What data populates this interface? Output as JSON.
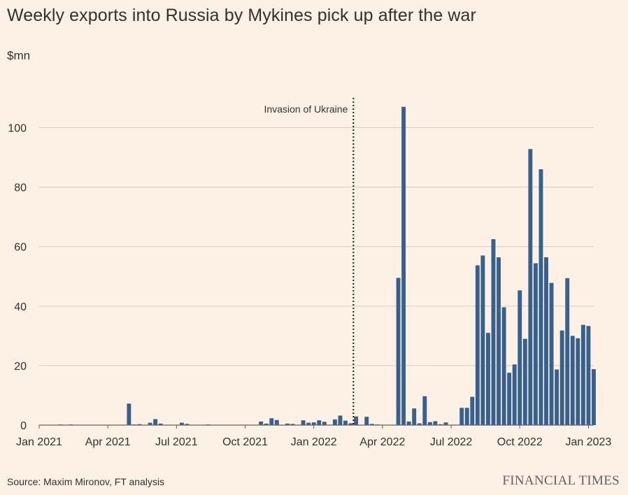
{
  "header": {
    "title": "Weekly exports into Russia by Mykines pick up after the war",
    "unit": "$mn"
  },
  "footer": {
    "source": "Source: Maxim Mironov, FT analysis",
    "brand": "FINANCIAL TIMES"
  },
  "colors": {
    "background": "#fdf1e6",
    "bar": "#36618f",
    "grid": "#d9cbbf",
    "text": "#33302e"
  },
  "chart_data": {
    "type": "bar",
    "x_start": "Jan 2021",
    "period": "weekly",
    "ylabel": "$mn",
    "ylim": [
      0,
      110
    ],
    "yticks": [
      0,
      20,
      40,
      60,
      80,
      100
    ],
    "xticks": [
      {
        "label": "Jan 2021",
        "week": 0
      },
      {
        "label": "Apr 2021",
        "week": 13
      },
      {
        "label": "Jul 2021",
        "week": 26
      },
      {
        "label": "Oct 2021",
        "week": 39
      },
      {
        "label": "Jan 2022",
        "week": 52
      },
      {
        "label": "Apr 2022",
        "week": 65
      },
      {
        "label": "Jul 2022",
        "week": 78
      },
      {
        "label": "Oct 2022",
        "week": 91
      },
      {
        "label": "Jan 2023",
        "week": 104
      }
    ],
    "annotation": {
      "label": "Invasion of Ukraine",
      "week": 59.5
    },
    "grid": true,
    "values": [
      0,
      0,
      0,
      0,
      0.2,
      0,
      0.2,
      0,
      0,
      0,
      0,
      0,
      0,
      0,
      0,
      0,
      0,
      7.2,
      0.2,
      0.3,
      0,
      0.8,
      2,
      0.5,
      0,
      0,
      0,
      0.8,
      0.4,
      0,
      0,
      0,
      0.2,
      0,
      0,
      0,
      0,
      0,
      0,
      0,
      0,
      0,
      1.2,
      0.5,
      2.3,
      1.7,
      0,
      0.5,
      0.4,
      0,
      1.6,
      0.8,
      0.9,
      1.6,
      1.1,
      0,
      1.9,
      3.2,
      1.5,
      0.6,
      2.9,
      0,
      2.8,
      0.4,
      0.2,
      0,
      0,
      0,
      49.5,
      107,
      1.2,
      5.6,
      0.6,
      9.7,
      1,
      1.3,
      0.3,
      0.9,
      0,
      0,
      5.8,
      5.8,
      9.5,
      53.7,
      57,
      31,
      62.5,
      56.4,
      39.6,
      17.6,
      20.4,
      45.3,
      29,
      92.8,
      54.4,
      86,
      56.4,
      47.8,
      18.7,
      31.8,
      49.4,
      30,
      29.2,
      33.7,
      33.3,
      18.8
    ]
  }
}
